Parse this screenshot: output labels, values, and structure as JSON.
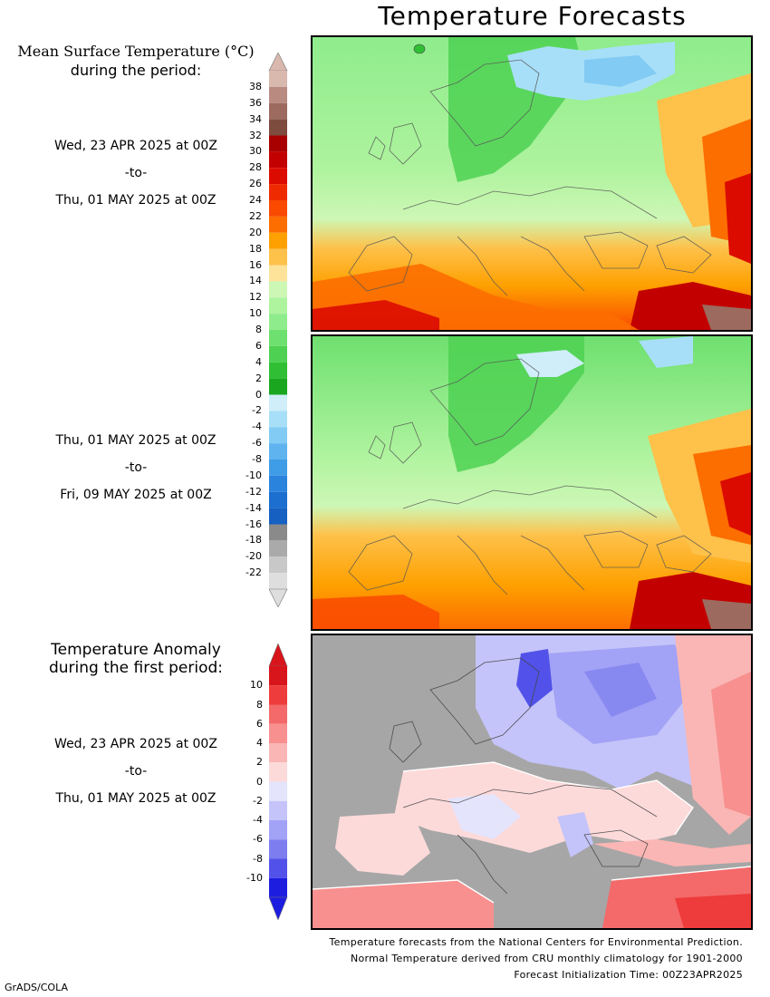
{
  "title": "Temperature Forecasts",
  "legend1": {
    "heading_line1": "Mean Surface Temperature (°C)",
    "heading_line2": "during the period:",
    "units": "°C",
    "ticks": [
      "38",
      "36",
      "34",
      "32",
      "30",
      "28",
      "26",
      "24",
      "22",
      "20",
      "18",
      "16",
      "14",
      "12",
      "10",
      "8",
      "6",
      "4",
      "2",
      "0",
      "-2",
      "-4",
      "-6",
      "-8",
      "-10",
      "-12",
      "-14",
      "-16",
      "-18",
      "-20",
      "-22"
    ],
    "bins": [
      "#d9b8ad",
      "#b98b80",
      "#9c6a5e",
      "#7e4b3f",
      "#a80000",
      "#c30000",
      "#dc0b00",
      "#ef2a00",
      "#f94a00",
      "#fc6e00",
      "#fea000",
      "#fec14a",
      "#fde39a",
      "#cdf7b5",
      "#aef39e",
      "#8fec8c",
      "#6ee06f",
      "#4ed152",
      "#30bf34",
      "#1aa71f",
      "#cfeefa",
      "#a8dff8",
      "#82cbf4",
      "#5fb4ef",
      "#3f9ce6",
      "#2a83dc",
      "#1c6ecf",
      "#1660c2",
      "#8a8a8a",
      "#aaaaaa",
      "#c8c8c8",
      "#dedede"
    ]
  },
  "period1": {
    "start": "Wed, 23 APR 2025 at 00Z",
    "sep": "-to-",
    "end": "Thu, 01 MAY 2025 at 00Z"
  },
  "period2": {
    "start": "Thu, 01 MAY 2025 at 00Z",
    "sep": "-to-",
    "end": "Fri, 09 MAY 2025 at 00Z"
  },
  "legend2": {
    "heading_line1": "Temperature Anomaly",
    "heading_line2": "during the first period:",
    "ticks": [
      "10",
      "8",
      "6",
      "4",
      "2",
      "0",
      "-2",
      "-4",
      "-6",
      "-8",
      "-10"
    ],
    "bins": [
      "#d7151b",
      "#ee3b3b",
      "#f4696a",
      "#f7908f",
      "#fab6b4",
      "#fddada",
      "#e4e4fc",
      "#c4c4fa",
      "#a2a2f6",
      "#7d7df0",
      "#5252ea",
      "#1d1de0"
    ]
  },
  "period3": {
    "start": "Wed, 23 APR 2025 at 00Z",
    "sep": "-to-",
    "end": "Thu, 01 MAY 2025 at 00Z"
  },
  "footer": {
    "line1": "Temperature forecasts from the National Centers for Environmental Prediction.",
    "line2": "Normal Temperature derived from CRU monthly climatology for 1901-2000",
    "line3": "Forecast Initialization Time: 00Z23APR2025"
  },
  "credit": "GrADS/COLA",
  "maps": {
    "region": "Europe",
    "panel1": "forecast-mean-temperature-period-1",
    "panel2": "forecast-mean-temperature-period-2",
    "panel3": "temperature-anomaly-period-1",
    "ocean_mask_color": "#a6a6a6"
  }
}
